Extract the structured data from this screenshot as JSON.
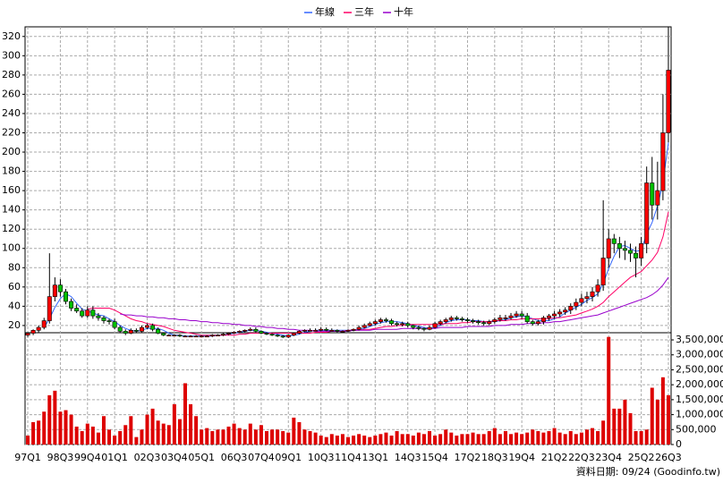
{
  "chart_data": {
    "type": "candlestick",
    "legend": "top",
    "grid": true,
    "categories": [
      "97Q1",
      null,
      null,
      null,
      null,
      null,
      "98Q3",
      null,
      null,
      null,
      null,
      "99Q4",
      null,
      null,
      null,
      null,
      "01Q1",
      null,
      null,
      null,
      null,
      null,
      "02Q3",
      null,
      null,
      null,
      null,
      "03Q4",
      null,
      null,
      null,
      null,
      "05Q1",
      null,
      null,
      null,
      null,
      null,
      "06Q3",
      null,
      null,
      null,
      null,
      "07Q4",
      null,
      null,
      null,
      null,
      "09Q1",
      null,
      null,
      null,
      null,
      null,
      "10Q3",
      null,
      null,
      null,
      null,
      "11Q4",
      null,
      null,
      null,
      null,
      "13Q1",
      null,
      null,
      null,
      null,
      null,
      "14Q3",
      null,
      null,
      null,
      null,
      "15Q4",
      null,
      null,
      null,
      null,
      null,
      "17Q2",
      null,
      null,
      null,
      null,
      "18Q3",
      null,
      null,
      null,
      null,
      "19Q4",
      null,
      null,
      null,
      null,
      null,
      "21Q2",
      null,
      null,
      null,
      null,
      "22Q3",
      null,
      null,
      null,
      null,
      "23Q4",
      null,
      null,
      null,
      null,
      null,
      "25Q2",
      null,
      null,
      null,
      null,
      "26Q3"
    ],
    "open": [
      10,
      12,
      15,
      18,
      25,
      50,
      62,
      55,
      45,
      38,
      35,
      30,
      36,
      30,
      28,
      25,
      24,
      18,
      14,
      12,
      15,
      14,
      18,
      20,
      16,
      12,
      10,
      10,
      10,
      9,
      9,
      9,
      9,
      9,
      9,
      10,
      10,
      11,
      12,
      13,
      14,
      15,
      16,
      14,
      12,
      11,
      10,
      9,
      8,
      10,
      12,
      14,
      15,
      15,
      15,
      16,
      15,
      15,
      14,
      14,
      15,
      16,
      18,
      20,
      22,
      24,
      26,
      25,
      22,
      21,
      22,
      20,
      18,
      17,
      16,
      18,
      22,
      24,
      26,
      28,
      27,
      26,
      25,
      24,
      23,
      22,
      24,
      26,
      28,
      28,
      30,
      32,
      30,
      24,
      22,
      24,
      28,
      30,
      32,
      34,
      36,
      40,
      44,
      48,
      50,
      55,
      62,
      90,
      110,
      105,
      100,
      98,
      95,
      90,
      105,
      168,
      145,
      160,
      220
    ],
    "high": [
      13,
      16,
      20,
      28,
      95,
      70,
      68,
      58,
      48,
      42,
      38,
      40,
      40,
      33,
      30,
      27,
      27,
      20,
      16,
      17,
      17,
      20,
      22,
      22,
      18,
      13,
      11,
      11,
      11,
      10,
      10,
      10,
      10,
      10,
      11,
      11,
      12,
      13,
      14,
      15,
      16,
      18,
      18,
      15,
      13,
      12,
      11,
      10,
      11,
      13,
      15,
      16,
      17,
      17,
      18,
      18,
      17,
      16,
      15,
      16,
      17,
      20,
      22,
      24,
      26,
      28,
      28,
      27,
      24,
      24,
      24,
      21,
      20,
      18,
      20,
      24,
      26,
      28,
      30,
      30,
      29,
      28,
      27,
      26,
      25,
      26,
      28,
      31,
      31,
      33,
      35,
      35,
      33,
      26,
      26,
      30,
      32,
      35,
      37,
      39,
      43,
      48,
      53,
      55,
      60,
      68,
      150,
      120,
      115,
      112,
      108,
      105,
      102,
      112,
      185,
      195,
      190,
      260,
      330
    ],
    "low": [
      8,
      10,
      13,
      16,
      22,
      45,
      50,
      42,
      35,
      33,
      28,
      28,
      27,
      25,
      22,
      21,
      16,
      12,
      10,
      11,
      12,
      13,
      16,
      14,
      11,
      9,
      9,
      9,
      8,
      8,
      8,
      8,
      8,
      8,
      8,
      9,
      9,
      10,
      11,
      12,
      13,
      14,
      13,
      11,
      10,
      9,
      8,
      7,
      7,
      9,
      11,
      13,
      14,
      14,
      14,
      14,
      14,
      13,
      13,
      13,
      14,
      15,
      17,
      19,
      20,
      22,
      23,
      20,
      19,
      19,
      18,
      16,
      15,
      14,
      15,
      17,
      20,
      22,
      24,
      25,
      24,
      23,
      22,
      21,
      20,
      20,
      22,
      24,
      25,
      26,
      28,
      27,
      22,
      20,
      20,
      21,
      25,
      27,
      29,
      31,
      32,
      36,
      40,
      43,
      45,
      50,
      56,
      80,
      95,
      90,
      88,
      86,
      70,
      82,
      95,
      130,
      130,
      150,
      210
    ],
    "close": [
      12,
      15,
      18,
      25,
      50,
      62,
      55,
      45,
      38,
      35,
      30,
      36,
      30,
      28,
      25,
      24,
      18,
      14,
      12,
      15,
      14,
      18,
      20,
      16,
      12,
      10,
      10,
      10,
      9,
      9,
      9,
      9,
      9,
      9,
      10,
      10,
      11,
      12,
      13,
      14,
      15,
      16,
      14,
      12,
      11,
      10,
      9,
      8,
      10,
      12,
      14,
      15,
      15,
      15,
      16,
      15,
      15,
      14,
      14,
      15,
      16,
      18,
      20,
      22,
      24,
      26,
      25,
      22,
      21,
      22,
      20,
      18,
      17,
      16,
      18,
      22,
      24,
      26,
      28,
      27,
      26,
      25,
      24,
      23,
      22,
      24,
      26,
      28,
      28,
      30,
      32,
      30,
      24,
      22,
      24,
      28,
      30,
      32,
      34,
      36,
      40,
      44,
      48,
      50,
      55,
      62,
      90,
      110,
      105,
      100,
      98,
      95,
      90,
      105,
      168,
      145,
      160,
      220,
      285
    ],
    "up_color": "#ff0000",
    "down_color": "#00c000",
    "wick_color": "#000000",
    "series": [
      {
        "name": "年線",
        "color": "#3366ff",
        "values": [
          null,
          null,
          null,
          18,
          27,
          39,
          48,
          53,
          50,
          43,
          37,
          35,
          33,
          31,
          30,
          27,
          24,
          20,
          17,
          15,
          14,
          15,
          17,
          17,
          17,
          15,
          12,
          10,
          10,
          9,
          9,
          9,
          9,
          9,
          9,
          10,
          10,
          11,
          12,
          13,
          14,
          15,
          15,
          14,
          13,
          12,
          11,
          10,
          9,
          10,
          11,
          13,
          14,
          15,
          15,
          15,
          15,
          15,
          15,
          15,
          15,
          16,
          17,
          19,
          21,
          23,
          24,
          24,
          24,
          23,
          22,
          20,
          19,
          18,
          17,
          18,
          20,
          23,
          25,
          26,
          26,
          26,
          25,
          25,
          24,
          24,
          24,
          25,
          26,
          28,
          29,
          30,
          29,
          27,
          25,
          25,
          25,
          27,
          29,
          33,
          36,
          39,
          42,
          46,
          49,
          53,
          64,
          79,
          92,
          102,
          103,
          100,
          97,
          98,
          115,
          127,
          144,
          168,
          210
        ]
      },
      {
        "name": "三年",
        "color": "#ff0066",
        "values": [
          null,
          null,
          null,
          null,
          null,
          null,
          null,
          null,
          null,
          null,
          null,
          37,
          38,
          38,
          38,
          38,
          36,
          33,
          30,
          27,
          25,
          24,
          22,
          21,
          20,
          19,
          17,
          15,
          14,
          13,
          12,
          11,
          10,
          10,
          10,
          10,
          10,
          10,
          10,
          11,
          11,
          12,
          12,
          12,
          12,
          12,
          12,
          12,
          12,
          12,
          12,
          12,
          12,
          13,
          13,
          13,
          14,
          14,
          14,
          15,
          15,
          15,
          16,
          16,
          17,
          18,
          19,
          19,
          20,
          20,
          21,
          21,
          21,
          21,
          21,
          21,
          21,
          22,
          22,
          22,
          23,
          23,
          24,
          24,
          24,
          24,
          25,
          25,
          25,
          26,
          26,
          27,
          27,
          27,
          27,
          27,
          27,
          28,
          28,
          29,
          30,
          31,
          33,
          35,
          37,
          40,
          44,
          50,
          55,
          60,
          65,
          70,
          73,
          76,
          82,
          88,
          96,
          112,
          138
        ]
      },
      {
        "name": "十年",
        "color": "#9900cc",
        "values": [
          null,
          null,
          null,
          null,
          null,
          null,
          null,
          null,
          null,
          null,
          null,
          null,
          null,
          null,
          null,
          null,
          null,
          32,
          31,
          31,
          30,
          30,
          29,
          29,
          28,
          28,
          27,
          27,
          26,
          26,
          25,
          25,
          24,
          24,
          23,
          23,
          22,
          22,
          21,
          21,
          20,
          20,
          19,
          19,
          18,
          18,
          17,
          17,
          16,
          16,
          15,
          15,
          15,
          14,
          14,
          14,
          14,
          14,
          14,
          14,
          15,
          15,
          15,
          15,
          16,
          16,
          16,
          16,
          16,
          17,
          17,
          17,
          17,
          17,
          17,
          17,
          18,
          18,
          18,
          18,
          18,
          19,
          19,
          19,
          19,
          19,
          20,
          20,
          20,
          21,
          21,
          21,
          22,
          22,
          22,
          23,
          23,
          24,
          24,
          25,
          26,
          27,
          28,
          29,
          30,
          31,
          33,
          35,
          37,
          39,
          41,
          43,
          45,
          47,
          49,
          52,
          56,
          62,
          70
        ]
      }
    ],
    "ylim": [
      12.5,
      330
    ],
    "yticks": [
      20,
      40,
      60,
      80,
      100,
      120,
      140,
      160,
      180,
      200,
      220,
      240,
      260,
      280,
      300,
      320
    ],
    "volume": {
      "type": "bar",
      "color": "#dd0000",
      "values": [
        300000,
        750000,
        800000,
        1100000,
        1650000,
        1800000,
        1100000,
        1150000,
        1000000,
        600000,
        450000,
        700000,
        600000,
        400000,
        950000,
        500000,
        300000,
        450000,
        650000,
        950000,
        250000,
        500000,
        1000000,
        1200000,
        800000,
        700000,
        650000,
        1350000,
        850000,
        2050000,
        1350000,
        950000,
        500000,
        550000,
        450000,
        500000,
        500000,
        600000,
        700000,
        550000,
        500000,
        700000,
        500000,
        650000,
        450000,
        500000,
        500000,
        450000,
        400000,
        900000,
        750000,
        500000,
        450000,
        400000,
        300000,
        250000,
        350000,
        300000,
        350000,
        250000,
        300000,
        350000,
        300000,
        250000,
        300000,
        350000,
        400000,
        300000,
        450000,
        350000,
        350000,
        300000,
        400000,
        350000,
        450000,
        300000,
        350000,
        500000,
        400000,
        300000,
        350000,
        350000,
        400000,
        350000,
        350000,
        450000,
        550000,
        350000,
        450000,
        350000,
        400000,
        350000,
        400000,
        500000,
        450000,
        400000,
        450000,
        550000,
        400000,
        350000,
        450000,
        350000,
        400000,
        500000,
        550000,
        450000,
        800000,
        3600000,
        1200000,
        1200000,
        1500000,
        1050000,
        450000,
        450000,
        500000,
        1900000,
        1500000,
        2250000,
        1650000
      ],
      "ylim": [
        0,
        3740000
      ],
      "yticks": [
        {
          "value": 0,
          "label": "0"
        },
        {
          "value": 500000,
          "label": "500,000"
        },
        {
          "value": 1000000,
          "label": "1,000,000"
        },
        {
          "value": 1500000,
          "label": "1,500,000"
        },
        {
          "value": 2000000,
          "label": "2,000,000"
        },
        {
          "value": 2500000,
          "label": "2,500,000"
        },
        {
          "value": 3000000,
          "label": "3,000,000"
        },
        {
          "value": 3500000,
          "label": "3,500,000"
        }
      ]
    },
    "source": "資料日期: 09/24 (Goodinfo.tw)"
  }
}
